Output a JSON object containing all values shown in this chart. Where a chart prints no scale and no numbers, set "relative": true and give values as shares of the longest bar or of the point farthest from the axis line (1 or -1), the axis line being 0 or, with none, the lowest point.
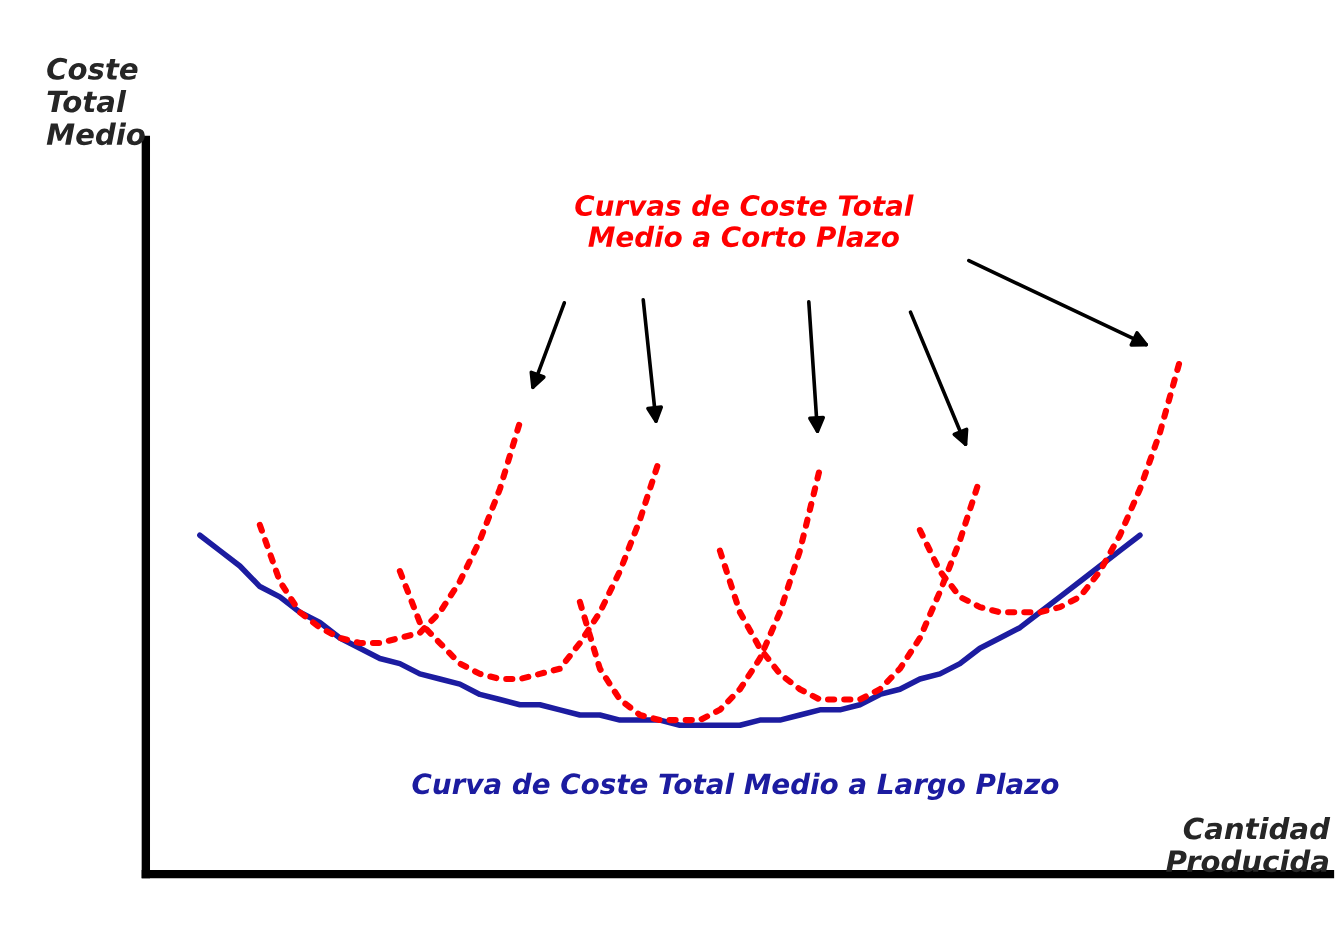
{
  "chart_data": {
    "type": "line",
    "relative": true,
    "xlabel": "Cantidad\nProducida",
    "marker": "none",
    "annotations": [
      "Curvas de Coste Total\nMedio a Corto Plazo",
      "Coste\nTotal\nMedio"
    ],
    "categories": [
      null,
      null,
      null,
      null,
      null,
      null,
      null,
      null,
      null,
      null,
      null,
      null,
      null,
      null,
      null,
      null,
      null,
      null,
      null,
      null,
      null,
      null,
      null,
      null,
      null,
      null,
      null,
      null,
      null,
      null,
      null,
      null,
      null,
      null,
      null,
      null,
      null,
      null,
      null,
      null,
      null,
      null,
      null,
      null,
      null,
      null,
      null,
      null,
      null,
      null
    ],
    "series": [
      {
        "name": "Curva de Coste Total Medio a Largo Plazo",
        "color": "#1c1ca0",
        "line_style": "solid",
        "values": [
          0.66,
          0.63,
          0.6,
          0.56,
          0.54,
          0.51,
          0.49,
          0.46,
          0.44,
          0.42,
          0.41,
          0.39,
          0.38,
          0.37,
          0.35,
          0.34,
          0.33,
          0.33,
          0.32,
          0.31,
          0.31,
          0.3,
          0.3,
          0.3,
          0.29,
          0.29,
          0.29,
          0.29,
          0.3,
          0.3,
          0.31,
          0.32,
          0.32,
          0.33,
          0.35,
          0.36,
          0.38,
          0.39,
          0.41,
          0.44,
          0.46,
          0.48,
          0.51,
          0.54,
          0.57,
          0.6,
          0.63,
          0.66,
          null,
          null
        ]
      },
      {
        "color": "#ff0000",
        "line_style": "dotted",
        "values": [
          null,
          null,
          null,
          0.68,
          0.57,
          0.51,
          0.48,
          0.46,
          0.45,
          0.45,
          0.46,
          0.47,
          0.51,
          0.57,
          0.65,
          0.75,
          0.88,
          null,
          null,
          null,
          null,
          null,
          null,
          null,
          null,
          null,
          null,
          null,
          null,
          null,
          null,
          null,
          null,
          null,
          null,
          null,
          null,
          null,
          null,
          null,
          null,
          null,
          null,
          null,
          null,
          null,
          null,
          null,
          null,
          null
        ]
      },
      {
        "color": "#ff0000",
        "line_style": "dotted",
        "values": [
          null,
          null,
          null,
          null,
          null,
          null,
          null,
          null,
          null,
          null,
          0.59,
          0.49,
          0.45,
          0.41,
          0.39,
          0.38,
          0.38,
          0.39,
          0.4,
          0.45,
          0.51,
          0.59,
          0.69,
          0.81,
          null,
          null,
          null,
          null,
          null,
          null,
          null,
          null,
          null,
          null,
          null,
          null,
          null,
          null,
          null,
          null,
          null,
          null,
          null,
          null,
          null,
          null,
          null,
          null,
          null,
          null
        ]
      },
      {
        "color": "#ff0000",
        "line_style": "dotted",
        "values": [
          null,
          null,
          null,
          null,
          null,
          null,
          null,
          null,
          null,
          null,
          null,
          null,
          null,
          null,
          null,
          null,
          null,
          null,
          null,
          0.53,
          0.4,
          0.34,
          0.31,
          0.3,
          0.3,
          0.3,
          0.32,
          0.36,
          0.42,
          0.51,
          0.63,
          0.79,
          null,
          null,
          null,
          null,
          null,
          null,
          null,
          null,
          null,
          null,
          null,
          null,
          null,
          null,
          null,
          null,
          null,
          null
        ]
      },
      {
        "color": "#ff0000",
        "line_style": "dotted",
        "values": [
          null,
          null,
          null,
          null,
          null,
          null,
          null,
          null,
          null,
          null,
          null,
          null,
          null,
          null,
          null,
          null,
          null,
          null,
          null,
          null,
          null,
          null,
          null,
          null,
          null,
          null,
          0.63,
          0.51,
          0.44,
          0.39,
          0.36,
          0.34,
          0.34,
          0.34,
          0.36,
          0.4,
          0.46,
          0.55,
          0.65,
          0.77,
          null,
          null,
          null,
          null,
          null,
          null,
          null,
          null,
          null,
          null
        ]
      },
      {
        "color": "#ff0000",
        "line_style": "dotted",
        "values": [
          null,
          null,
          null,
          null,
          null,
          null,
          null,
          null,
          null,
          null,
          null,
          null,
          null,
          null,
          null,
          null,
          null,
          null,
          null,
          null,
          null,
          null,
          null,
          null,
          null,
          null,
          null,
          null,
          null,
          null,
          null,
          null,
          null,
          null,
          null,
          null,
          0.67,
          0.59,
          0.54,
          0.52,
          0.51,
          0.51,
          0.51,
          0.52,
          0.54,
          0.59,
          0.66,
          0.75,
          0.86,
          1.0
        ]
      }
    ]
  }
}
